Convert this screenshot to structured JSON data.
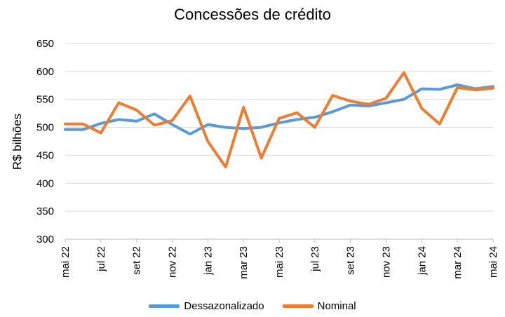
{
  "chart_data": {
    "type": "line",
    "title": "Concessões de crédito",
    "ylabel": "R$ bilhões",
    "xlabel": "",
    "ylim": [
      300,
      650
    ],
    "yticks": [
      300,
      350,
      400,
      450,
      500,
      550,
      600,
      650
    ],
    "grid": true,
    "legend_position": "bottom",
    "x": [
      "mai 22",
      "jun 22",
      "jul 22",
      "ago 22",
      "set 22",
      "out 22",
      "nov 22",
      "dez 22",
      "jan 23",
      "fev 23",
      "mar 23",
      "abr 23",
      "mai 23",
      "jun 23",
      "jul 23",
      "ago 23",
      "set 23",
      "out 23",
      "nov 23",
      "dez 23",
      "jan 24",
      "fev 24",
      "mar 24",
      "abr 24",
      "mai 24"
    ],
    "x_tick_labels": [
      "mai 22",
      "jul 22",
      "set 22",
      "nov 22",
      "jan 23",
      "mar 23",
      "mai 23",
      "jul 23",
      "set 23",
      "nov 23",
      "jan 24",
      "mar 24",
      "mai 24"
    ],
    "series": [
      {
        "name": "Dessazonalizado",
        "color": "#5B9BD5",
        "values": [
          496,
          496,
          507,
          514,
          511,
          524,
          505,
          488,
          505,
          500,
          498,
          500,
          508,
          514,
          518,
          528,
          540,
          538,
          544,
          550,
          569,
          568,
          576,
          569,
          573
        ]
      },
      {
        "name": "Nominal",
        "color": "#ED7D31",
        "values": [
          506,
          506,
          490,
          544,
          531,
          504,
          512,
          556,
          475,
          429,
          536,
          445,
          516,
          526,
          500,
          557,
          547,
          541,
          552,
          598,
          534,
          506,
          571,
          567,
          570
        ]
      }
    ]
  }
}
